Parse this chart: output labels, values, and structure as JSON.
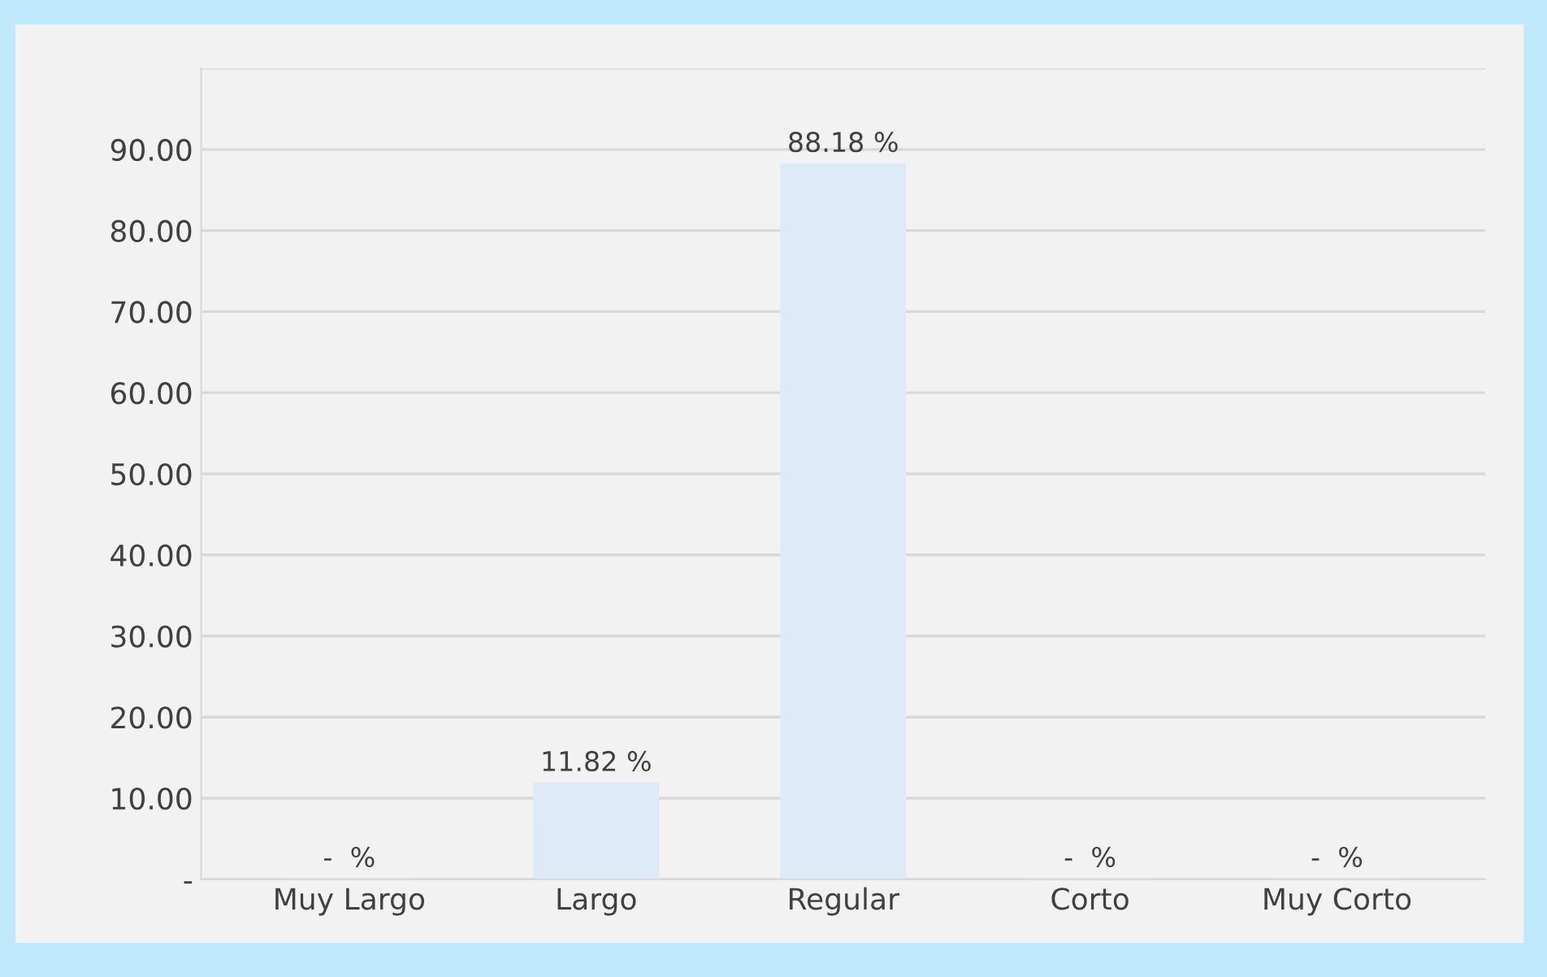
{
  "chart_data": {
    "type": "bar",
    "categories": [
      "Muy Largo",
      "Largo",
      "Regular",
      "Corto",
      "Muy Corto"
    ],
    "values": [
      0,
      11.82,
      88.18,
      0,
      0
    ],
    "value_labels": [
      "-  %",
      "11.82 %",
      "88.18 %",
      "-  %",
      "-  %"
    ],
    "color": "#dfeaf8",
    "ylim": [
      0,
      100
    ],
    "yticks": [
      {
        "value": 0,
        "label": "-"
      },
      {
        "value": 10,
        "label": "10.00"
      },
      {
        "value": 20,
        "label": "20.00"
      },
      {
        "value": 30,
        "label": "30.00"
      },
      {
        "value": 40,
        "label": "40.00"
      },
      {
        "value": 50,
        "label": "50.00"
      },
      {
        "value": 60,
        "label": "60.00"
      },
      {
        "value": 70,
        "label": "70.00"
      },
      {
        "value": 80,
        "label": "80.00"
      },
      {
        "value": 90,
        "label": "90.00"
      },
      {
        "value": 100,
        "label": null
      }
    ],
    "grid": "y"
  }
}
